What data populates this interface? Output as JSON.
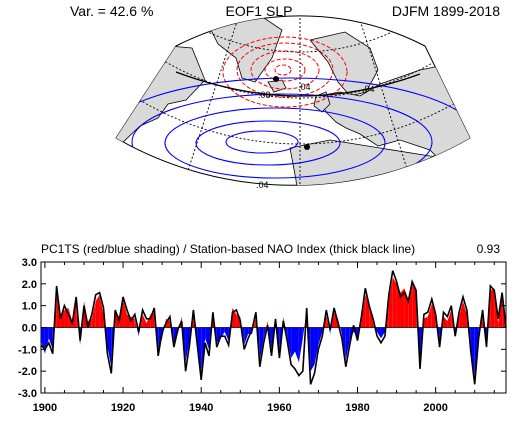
{
  "map": {
    "left_label": "Var. = 42.6 %",
    "center_label": "EOF1 SLP",
    "right_label": "DJFM 1899-2018",
    "contour_labels": [
      ".08",
      ".04",
      ".04",
      ".04"
    ],
    "colors": {
      "positive": "#ff0000",
      "negative": "#0000ff",
      "land": "#d9d9d9"
    }
  },
  "chart_data": {
    "type": "area",
    "title": "PC1TS (red/blue shading) / Station-based NAO Index (thick black line)",
    "correlation_label": "0.93",
    "xlabel": "",
    "ylabel": "",
    "xlim": [
      1899,
      2018
    ],
    "ylim": [
      -3,
      3
    ],
    "x_ticks": [
      1900,
      1920,
      1940,
      1960,
      1980,
      2000
    ],
    "y_ticks": [
      "3.0",
      "2.0",
      "1.0",
      "0.0",
      "-1.0",
      "-2.0",
      "-3.0"
    ],
    "grid": false,
    "colors": {
      "positive": "#ff0000",
      "negative": "#0000ff",
      "line": "#000000"
    },
    "x": [
      1899,
      1900,
      1901,
      1902,
      1903,
      1904,
      1905,
      1906,
      1907,
      1908,
      1909,
      1910,
      1911,
      1912,
      1913,
      1914,
      1915,
      1916,
      1917,
      1918,
      1919,
      1920,
      1921,
      1922,
      1923,
      1924,
      1925,
      1926,
      1927,
      1928,
      1929,
      1930,
      1931,
      1932,
      1933,
      1934,
      1935,
      1936,
      1937,
      1938,
      1939,
      1940,
      1941,
      1942,
      1943,
      1944,
      1945,
      1946,
      1947,
      1948,
      1949,
      1950,
      1951,
      1952,
      1953,
      1954,
      1955,
      1956,
      1957,
      1958,
      1959,
      1960,
      1961,
      1962,
      1963,
      1964,
      1965,
      1966,
      1967,
      1968,
      1969,
      1970,
      1971,
      1972,
      1973,
      1974,
      1975,
      1976,
      1977,
      1978,
      1979,
      1980,
      1981,
      1982,
      1983,
      1984,
      1985,
      1986,
      1987,
      1988,
      1989,
      1990,
      1991,
      1992,
      1993,
      1994,
      1995,
      1996,
      1997,
      1998,
      1999,
      2000,
      2001,
      2002,
      2003,
      2004,
      2005,
      2006,
      2007,
      2008,
      2009,
      2010,
      2011,
      2012,
      2013,
      2014,
      2015,
      2016,
      2017,
      2018
    ],
    "series": [
      {
        "values": [
          -0.6,
          -1.2,
          -0.5,
          -1.0,
          1.6,
          0.6,
          0.8,
          0.9,
          0.3,
          1.2,
          -0.8,
          1.2,
          0.3,
          0.4,
          1.2,
          1.5,
          0.6,
          -0.9,
          -1.8,
          0.7,
          0.5,
          1.3,
          0.6,
          0.5,
          0.4,
          -0.4,
          0.6,
          0.2,
          0.6,
          0.7,
          -1.0,
          -0.5,
          0.4,
          0.3,
          -0.7,
          -0.3,
          0.5,
          -1.6,
          -0.6,
          0.6,
          -0.6,
          -2.1,
          -0.5,
          -1.0,
          0.5,
          -0.7,
          -0.5,
          -0.2,
          -0.6,
          0.9,
          0.6,
          0.5,
          -0.8,
          -0.3,
          -0.3,
          0.5,
          -1.5,
          -0.5,
          0.3,
          -1.0,
          0.2,
          -1.2,
          0.5,
          -0.4,
          -1.4,
          -1.1,
          -1.6,
          -0.5,
          0.8,
          -2.0,
          -1.7,
          -0.8,
          -0.2,
          0.6,
          -0.3,
          0.7,
          0.4,
          -0.3,
          -1.5,
          -0.6,
          -0.2,
          -0.4,
          0.3,
          1.5,
          1.1,
          0.2,
          -0.2,
          -0.5,
          -0.2,
          1.3,
          2.3,
          2.0,
          1.6,
          1.8,
          1.3,
          2.0,
          1.8,
          -1.6,
          0.4,
          0.5,
          1.1,
          0.7,
          -0.7,
          0.5,
          0.3,
          0.8,
          -0.2,
          0.5,
          1.2,
          0.6,
          -0.9,
          -2.3,
          -0.3,
          0.6,
          -0.7,
          1.7,
          1.8,
          0.2,
          1.5,
          0.2
        ]
      },
      {
        "values": [
          -0.8,
          -1.0,
          -0.7,
          -1.2,
          1.9,
          0.4,
          1.0,
          0.6,
          0.2,
          1.4,
          -0.6,
          1.0,
          0.0,
          0.6,
          1.5,
          1.6,
          0.9,
          -1.2,
          -2.1,
          0.8,
          0.3,
          1.4,
          0.8,
          0.3,
          0.6,
          -0.2,
          0.8,
          0.4,
          0.4,
          0.9,
          -1.3,
          -0.2,
          0.2,
          0.5,
          -0.9,
          -0.1,
          0.3,
          -2.0,
          -0.8,
          0.8,
          -0.8,
          -2.4,
          -0.7,
          -1.3,
          0.7,
          -0.9,
          -0.4,
          -0.4,
          -0.8,
          0.7,
          0.8,
          0.3,
          -1.0,
          -0.5,
          -0.1,
          0.7,
          -1.8,
          -0.7,
          0.1,
          -1.3,
          0.4,
          -1.4,
          0.3,
          -0.6,
          -1.7,
          -1.9,
          -2.2,
          -2.0,
          0.9,
          -2.6,
          -2.1,
          -1.0,
          -0.4,
          0.8,
          -0.1,
          0.9,
          0.2,
          -0.5,
          -1.8,
          -0.8,
          0.1,
          -0.6,
          0.5,
          1.8,
          1.0,
          0.4,
          -0.4,
          -0.7,
          -0.4,
          1.5,
          2.6,
          2.1,
          1.4,
          1.6,
          1.2,
          2.1,
          1.7,
          -1.9,
          0.6,
          0.7,
          1.3,
          0.6,
          -0.9,
          0.7,
          0.5,
          1.0,
          -0.4,
          0.7,
          1.4,
          0.8,
          -1.1,
          -2.6,
          -0.5,
          0.8,
          -0.9,
          1.9,
          1.7,
          0.4,
          1.6,
          0.0
        ]
      }
    ]
  }
}
